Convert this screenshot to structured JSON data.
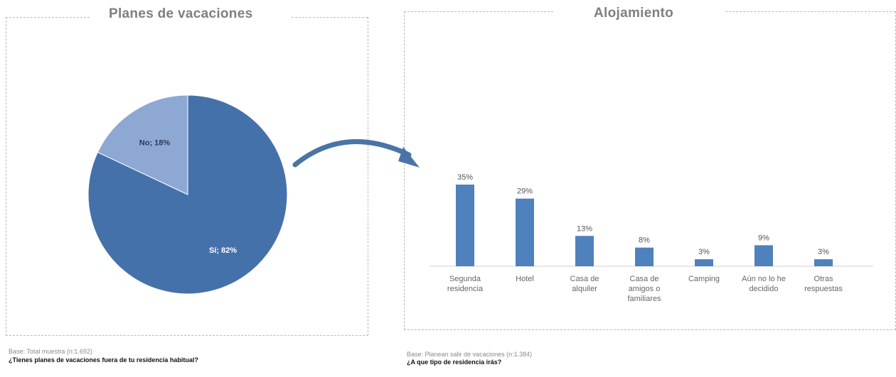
{
  "left": {
    "title": "Planes de vacaciones",
    "base": "Base: Total muestra (n:1.692)",
    "question": "¿Tienes planes de vacaciones fuera de tu residencia habitual?"
  },
  "right": {
    "title": "Alojamiento",
    "base": "Base: Planean salir de vacaciones (n:1.384)",
    "question": "¿A que tipo de residencia irás?"
  },
  "colors": {
    "pie_si": "#4571aa",
    "pie_no": "#8ea8d4",
    "bar": "#4f81bd",
    "arrow": "#4a74a6"
  },
  "chart_data": [
    {
      "type": "pie",
      "title": "Planes de vacaciones",
      "slices": [
        {
          "label": "Sí",
          "value": 82,
          "display": "Sí; 82%"
        },
        {
          "label": "No",
          "value": 18,
          "display": "No; 18%"
        }
      ]
    },
    {
      "type": "bar",
      "title": "Alojamiento",
      "categories": [
        [
          "Segunda",
          "residencia"
        ],
        [
          "Hotel"
        ],
        [
          "Casa de",
          "alquiler"
        ],
        [
          "Casa de",
          "amigos o",
          "familiares"
        ],
        [
          "Camping"
        ],
        [
          "Aún no lo he",
          "decidido"
        ],
        [
          "Otras",
          "respuestas"
        ]
      ],
      "values": [
        35,
        29,
        13,
        8,
        3,
        9,
        3
      ],
      "value_labels": [
        "35%",
        "29%",
        "13%",
        "8%",
        "3%",
        "9%",
        "3%"
      ],
      "ylim": [
        0,
        35
      ]
    }
  ]
}
